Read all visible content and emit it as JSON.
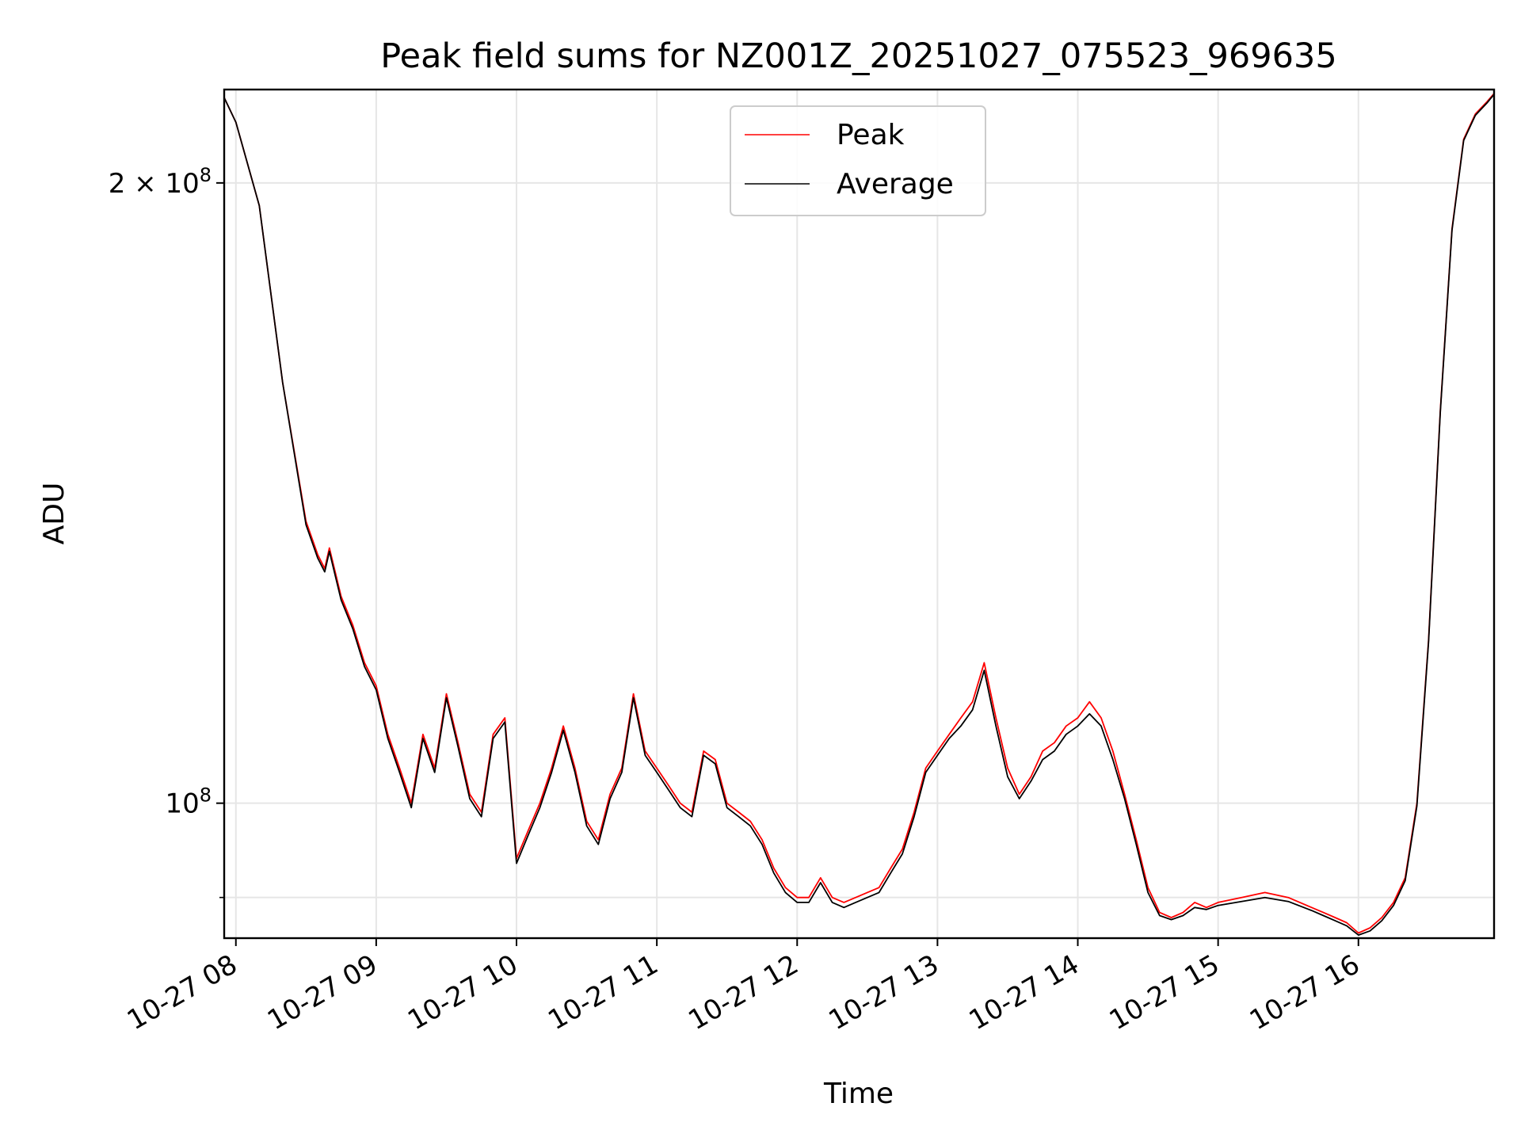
{
  "chart_data": {
    "type": "line",
    "title": "Peak field sums for NZ001Z_20251027_075523_969635",
    "xlabel": "Time",
    "ylabel": "ADU",
    "yscale": "log",
    "grid": true,
    "legend_placement": "top-center",
    "x_tick_labels": [
      "10-27 08",
      "10-27 09",
      "10-27 10",
      "10-27 11",
      "10-27 12",
      "10-27 13",
      "10-27 14",
      "10-27 15",
      "10-27 16"
    ],
    "y_tick_labels": [
      {
        "value": 200000000,
        "label": "2 × 10",
        "exp": "8"
      },
      {
        "value": 100000000,
        "label": "10",
        "exp": "8"
      }
    ],
    "y_minor_ticks": [
      90000000
    ],
    "xlim": [
      "2025-10-27 07:55",
      "2025-10-27 16:58"
    ],
    "ylim": [
      86000000,
      222000000
    ],
    "x": [
      "07:55",
      "08:00",
      "08:10",
      "08:20",
      "08:30",
      "08:35",
      "08:38",
      "08:40",
      "08:45",
      "08:50",
      "08:55",
      "09:00",
      "09:05",
      "09:10",
      "09:15",
      "09:20",
      "09:25",
      "09:30",
      "09:35",
      "09:40",
      "09:45",
      "09:50",
      "09:55",
      "10:00",
      "10:05",
      "10:10",
      "10:15",
      "10:20",
      "10:25",
      "10:30",
      "10:35",
      "10:40",
      "10:45",
      "10:50",
      "10:55",
      "11:00",
      "11:05",
      "11:10",
      "11:15",
      "11:20",
      "11:25",
      "11:30",
      "11:35",
      "11:40",
      "11:45",
      "11:50",
      "11:55",
      "12:00",
      "12:05",
      "12:10",
      "12:15",
      "12:20",
      "12:25",
      "12:30",
      "12:35",
      "12:40",
      "12:45",
      "12:50",
      "12:55",
      "13:00",
      "13:05",
      "13:10",
      "13:15",
      "13:20",
      "13:25",
      "13:30",
      "13:35",
      "13:40",
      "13:45",
      "13:50",
      "13:55",
      "14:00",
      "14:05",
      "14:10",
      "14:15",
      "14:20",
      "14:25",
      "14:30",
      "14:35",
      "14:40",
      "14:45",
      "14:50",
      "14:55",
      "15:00",
      "15:10",
      "15:20",
      "15:30",
      "15:40",
      "15:45",
      "15:50",
      "15:55",
      "16:00",
      "16:05",
      "16:10",
      "16:15",
      "16:20",
      "16:25",
      "16:30",
      "16:35",
      "16:40",
      "16:45",
      "16:50",
      "16:55",
      "16:58"
    ],
    "series": [
      {
        "name": "Peak",
        "color": "#ff0000",
        "values": [
          220000000,
          214000000,
          195000000,
          160000000,
          137000000,
          132000000,
          130000000,
          133000000,
          126000000,
          122000000,
          117000000,
          114000000,
          108000000,
          104000000,
          100000000,
          108000000,
          104000000,
          113000000,
          107000000,
          101000000,
          99000000,
          108000000,
          110000000,
          94000000,
          97000000,
          100000000,
          104000000,
          109000000,
          104000000,
          98000000,
          96000000,
          101000000,
          104000000,
          113000000,
          106000000,
          104000000,
          102000000,
          100000000,
          99000000,
          106000000,
          105000000,
          100000000,
          99000000,
          98000000,
          96000000,
          93000000,
          91000000,
          90000000,
          90000000,
          92000000,
          90000000,
          89500000,
          90000000,
          90500000,
          91000000,
          93000000,
          95000000,
          99000000,
          104000000,
          106000000,
          108000000,
          110000000,
          112000000,
          117000000,
          110000000,
          104000000,
          101000000,
          103000000,
          106000000,
          107000000,
          109000000,
          110000000,
          112000000,
          110000000,
          106000000,
          101000000,
          96000000,
          91000000,
          88500000,
          88000000,
          88500000,
          89500000,
          89000000,
          89500000,
          90000000,
          90500000,
          90000000,
          89000000,
          88500000,
          88000000,
          87500000,
          86500000,
          87000000,
          88000000,
          89500000,
          92000000,
          100000000,
          120000000,
          155000000,
          190000000,
          210000000,
          216000000,
          219000000,
          221000000
        ]
      },
      {
        "name": "Average",
        "color": "#000000",
        "values": [
          220000000,
          214000000,
          195000000,
          160000000,
          136500000,
          131500000,
          129500000,
          132500000,
          125500000,
          121500000,
          116500000,
          113500000,
          107500000,
          103500000,
          99500000,
          107500000,
          103500000,
          112500000,
          106500000,
          100500000,
          98500000,
          107500000,
          109500000,
          93500000,
          96500000,
          99500000,
          103500000,
          108500000,
          103500000,
          97500000,
          95500000,
          100500000,
          103500000,
          112500000,
          105500000,
          103500000,
          101500000,
          99500000,
          98500000,
          105500000,
          104500000,
          99500000,
          98500000,
          97500000,
          95500000,
          92500000,
          90500000,
          89500000,
          89500000,
          91500000,
          89500000,
          89000000,
          89500000,
          90000000,
          90500000,
          92500000,
          94500000,
          98500000,
          103500000,
          105500000,
          107500000,
          109000000,
          111000000,
          116000000,
          109000000,
          103000000,
          100500000,
          102500000,
          105000000,
          106000000,
          108000000,
          109000000,
          110500000,
          109000000,
          105000000,
          100500000,
          95500000,
          90500000,
          88200000,
          87800000,
          88200000,
          89000000,
          88800000,
          89200000,
          89600000,
          90000000,
          89600000,
          88700000,
          88200000,
          87700000,
          87200000,
          86300000,
          86700000,
          87700000,
          89200000,
          91700000,
          99700000,
          119700000,
          154700000,
          189700000,
          209700000,
          215700000,
          218700000,
          220800000
        ]
      }
    ]
  }
}
